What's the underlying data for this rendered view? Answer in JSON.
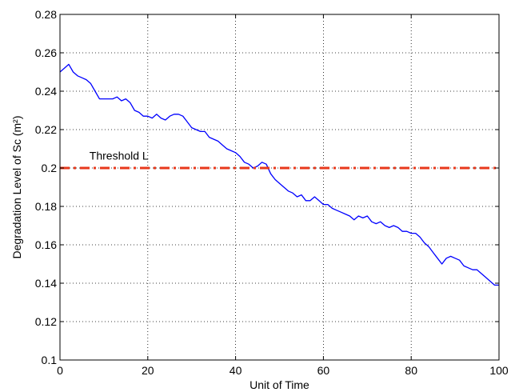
{
  "chart_data": {
    "type": "line",
    "xlabel": "Unit of Time",
    "ylabel": "Degradation Level of Sc (m²)",
    "xlim": [
      0,
      100
    ],
    "ylim": [
      0.1,
      0.28
    ],
    "xticks": [
      0,
      20,
      40,
      60,
      80,
      100
    ],
    "yticks": [
      0.1,
      0.12,
      0.14,
      0.16,
      0.18,
      0.2,
      0.22,
      0.24,
      0.26,
      0.28
    ],
    "xtick_labels": [
      "0",
      "20",
      "40",
      "60",
      "80",
      "100"
    ],
    "ytick_labels": [
      "0.1",
      "0.12",
      "0.14",
      "0.16",
      "0.18",
      "0.2",
      "0.22",
      "0.24",
      "0.26",
      "0.28"
    ],
    "grid": true,
    "series": [
      {
        "color": "#0000ff",
        "style": "solid",
        "x": [
          0,
          1,
          2,
          3,
          4,
          5,
          6,
          7,
          8,
          9,
          10,
          11,
          12,
          13,
          14,
          15,
          16,
          17,
          18,
          19,
          20,
          21,
          22,
          23,
          24,
          25,
          26,
          27,
          28,
          29,
          30,
          31,
          32,
          33,
          34,
          35,
          36,
          37,
          38,
          39,
          40,
          41,
          42,
          43,
          44,
          45,
          46,
          47,
          48,
          49,
          50,
          51,
          52,
          53,
          54,
          55,
          56,
          57,
          58,
          59,
          60,
          61,
          62,
          63,
          64,
          65,
          66,
          67,
          68,
          69,
          70,
          71,
          72,
          73,
          74,
          75,
          76,
          77,
          78,
          79,
          80,
          81,
          82,
          83,
          84,
          85,
          86,
          87,
          88,
          89,
          90,
          91,
          92,
          93,
          94,
          95,
          96,
          97,
          98,
          99,
          100
        ],
        "y": [
          0.25,
          0.252,
          0.254,
          0.25,
          0.248,
          0.247,
          0.246,
          0.244,
          0.24,
          0.236,
          0.236,
          0.236,
          0.236,
          0.237,
          0.235,
          0.236,
          0.234,
          0.23,
          0.229,
          0.227,
          0.227,
          0.226,
          0.228,
          0.226,
          0.225,
          0.227,
          0.228,
          0.228,
          0.227,
          0.224,
          0.221,
          0.22,
          0.219,
          0.219,
          0.216,
          0.215,
          0.214,
          0.212,
          0.21,
          0.209,
          0.208,
          0.206,
          0.203,
          0.202,
          0.2,
          0.201,
          0.203,
          0.202,
          0.197,
          0.194,
          0.192,
          0.19,
          0.188,
          0.187,
          0.185,
          0.186,
          0.183,
          0.183,
          0.185,
          0.183,
          0.181,
          0.181,
          0.179,
          0.178,
          0.177,
          0.176,
          0.175,
          0.173,
          0.175,
          0.174,
          0.175,
          0.172,
          0.171,
          0.172,
          0.17,
          0.169,
          0.17,
          0.169,
          0.167,
          0.167,
          0.166,
          0.166,
          0.164,
          0.161,
          0.159,
          0.156,
          0.153,
          0.15,
          0.153,
          0.154,
          0.153,
          0.152,
          0.149,
          0.148,
          0.147,
          0.147,
          0.145,
          0.143,
          0.141,
          0.139,
          0.139
        ]
      },
      {
        "color": "#e8381c",
        "style": "dash-dot",
        "x": [
          0,
          100
        ],
        "y": [
          0.2,
          0.2
        ]
      }
    ],
    "annotations": [
      {
        "text": "Threshold L",
        "x": 6.7,
        "y": 0.2018
      }
    ]
  }
}
